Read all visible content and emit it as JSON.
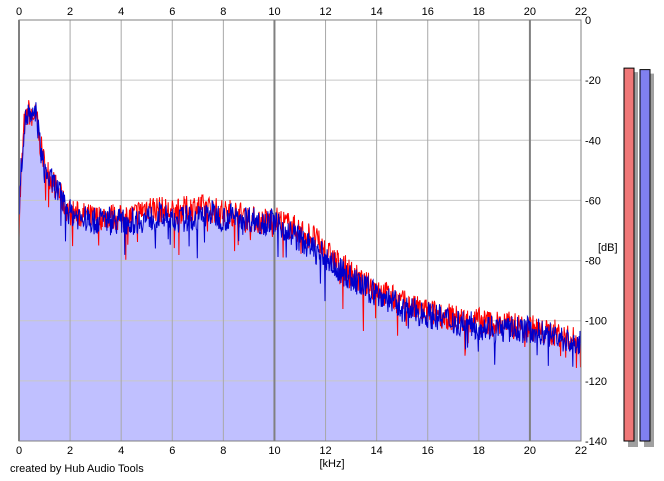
{
  "credit": "created by Hub Audio Tools",
  "chart_data": {
    "type": "area",
    "xlabel": "[kHz]",
    "ylabel": "[dB]",
    "xlim": [
      0,
      22
    ],
    "ylim": [
      -140,
      0
    ],
    "x_ticks": [
      0,
      2,
      4,
      6,
      8,
      10,
      12,
      14,
      16,
      18,
      20,
      22
    ],
    "y_ticks": [
      0,
      -20,
      -40,
      -60,
      -80,
      -100,
      -120,
      -140
    ],
    "grid": true,
    "colors": {
      "red": "#ff0000",
      "blue": "#0000cc",
      "fill": "#c0c0ff",
      "grid_minor": "#c8c8c8",
      "grid_major": "#808080",
      "meter_red": "#f07878",
      "meter_blue": "#8080f0"
    },
    "series": [
      {
        "color": "red",
        "x": [
          0.0,
          0.1,
          0.2,
          0.3,
          0.4,
          0.5,
          0.6,
          0.7,
          0.8,
          0.9,
          1.0,
          1.2,
          1.4,
          1.6,
          1.8,
          2.0,
          2.5,
          3.0,
          3.5,
          4.0,
          4.5,
          5.0,
          5.5,
          6.0,
          6.5,
          7.0,
          7.5,
          8.0,
          8.5,
          9.0,
          9.5,
          10.0,
          10.5,
          11.0,
          11.5,
          12.0,
          12.5,
          13.0,
          13.5,
          14.0,
          14.5,
          15.0,
          15.5,
          16.0,
          16.5,
          17.0,
          17.5,
          18.0,
          18.5,
          19.0,
          19.5,
          20.0,
          20.5,
          21.0,
          21.5,
          22.0
        ],
        "values": [
          -68,
          -50,
          -35,
          -33,
          -30,
          -34,
          -31,
          -33,
          -40,
          -44,
          -48,
          -52,
          -55,
          -58,
          -62,
          -64,
          -65,
          -66,
          -65,
          -66,
          -65,
          -62,
          -63,
          -64,
          -63,
          -62,
          -63,
          -64,
          -64,
          -66,
          -67,
          -66,
          -68,
          -70,
          -72,
          -77,
          -81,
          -84,
          -88,
          -89,
          -92,
          -94,
          -96,
          -97,
          -98,
          -99,
          -100,
          -100,
          -101,
          -101,
          -102,
          -102,
          -104,
          -104,
          -106,
          -107
        ]
      },
      {
        "color": "blue",
        "x": [
          0.0,
          0.1,
          0.2,
          0.3,
          0.4,
          0.5,
          0.6,
          0.7,
          0.8,
          0.9,
          1.0,
          1.2,
          1.4,
          1.6,
          1.8,
          2.0,
          2.5,
          3.0,
          3.5,
          4.0,
          4.5,
          5.0,
          5.5,
          6.0,
          6.5,
          7.0,
          7.5,
          8.0,
          8.5,
          9.0,
          9.5,
          10.0,
          10.5,
          11.0,
          11.5,
          12.0,
          12.5,
          13.0,
          13.5,
          14.0,
          14.5,
          15.0,
          15.5,
          16.0,
          16.5,
          17.0,
          17.5,
          18.0,
          18.5,
          19.0,
          19.5,
          20.0,
          20.5,
          21.0,
          21.5,
          22.0
        ],
        "values": [
          -64,
          -47,
          -36,
          -32,
          -31,
          -35,
          -30,
          -32,
          -40,
          -46,
          -50,
          -53,
          -55,
          -58,
          -62,
          -64,
          -66,
          -67,
          -66,
          -67,
          -67,
          -66,
          -65,
          -67,
          -66,
          -66,
          -64,
          -66,
          -65,
          -66,
          -67,
          -67,
          -70,
          -73,
          -76,
          -79,
          -83,
          -86,
          -89,
          -91,
          -93,
          -96,
          -97,
          -98,
          -99,
          -100,
          -101,
          -102,
          -102,
          -103,
          -103,
          -103,
          -104,
          -105,
          -107,
          -108
        ]
      }
    ],
    "meters": [
      {
        "color": "meter_red",
        "value_db": -16
      },
      {
        "color": "meter_blue",
        "value_db": -16.5
      }
    ]
  }
}
